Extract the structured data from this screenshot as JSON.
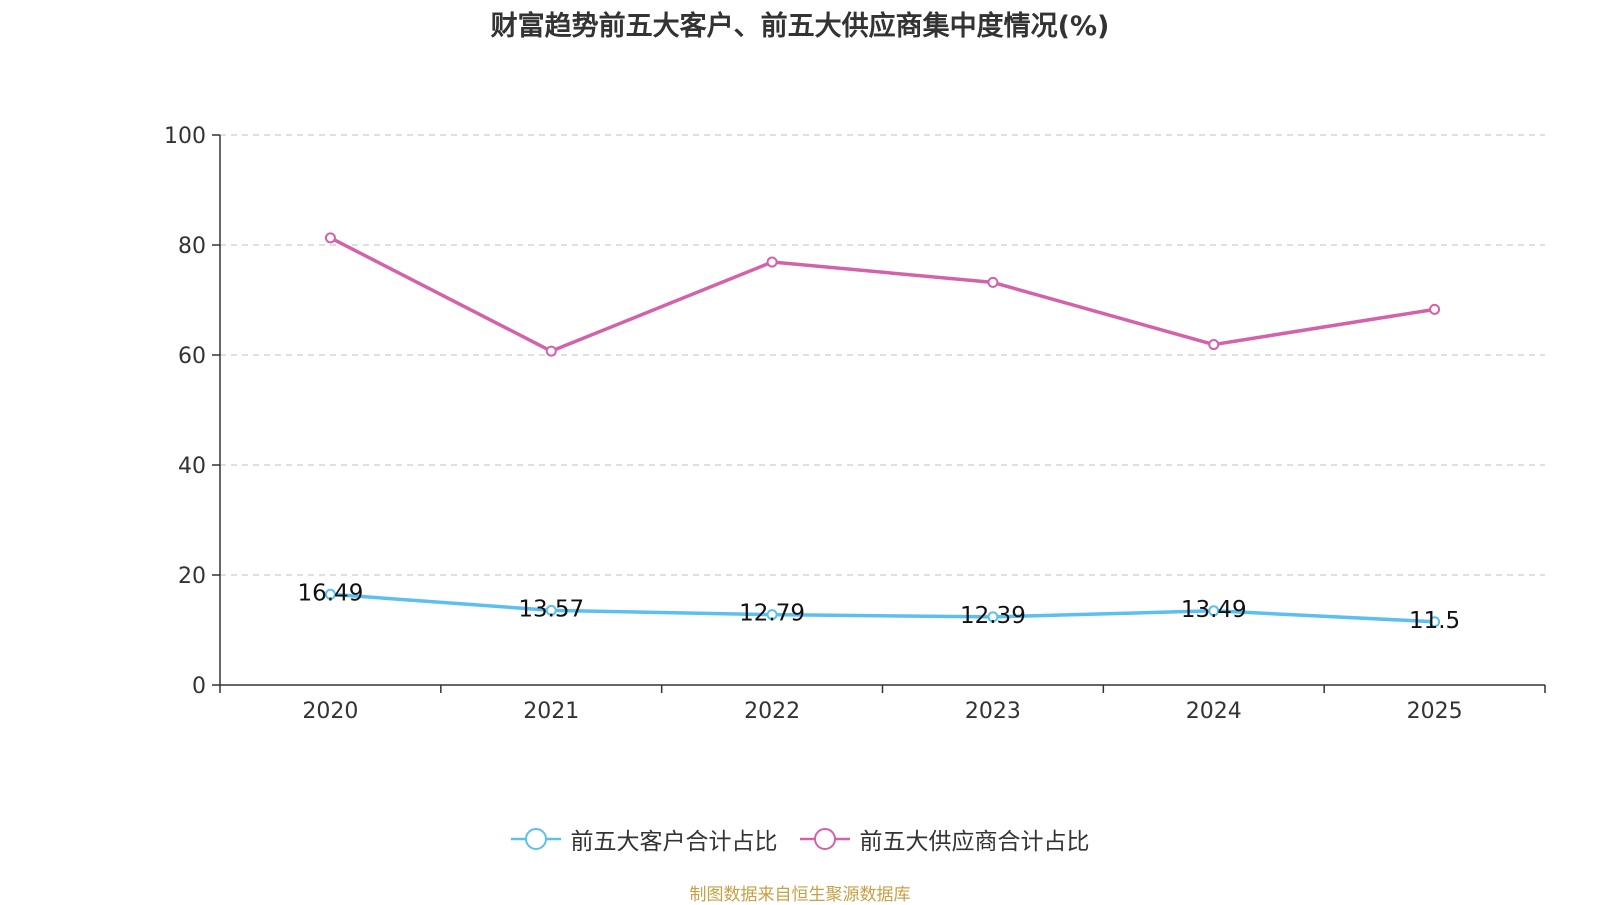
{
  "chart_data": {
    "type": "line",
    "title": "财富趋势前五大客户、前五大供应商集中度情况(%)",
    "categories": [
      "2020",
      "2021",
      "2022",
      "2023",
      "2024",
      "2025"
    ],
    "ylim": [
      0,
      100
    ],
    "yticks": [
      0,
      20,
      40,
      60,
      80,
      100
    ],
    "grid": true,
    "legend_position": "bottom",
    "series": [
      {
        "name": "前五大客户合计占比",
        "color": "#5bc0f0",
        "values": [
          16.49,
          13.57,
          12.79,
          12.39,
          13.49,
          11.5
        ],
        "labels": [
          "16.49",
          "13.57",
          "12.79",
          "12.39",
          "13.49",
          "11.5"
        ],
        "show_labels": true
      },
      {
        "name": "前五大供应商合计占比",
        "color": "#d462aa",
        "values": [
          81.3,
          60.7,
          76.9,
          73.2,
          61.9,
          68.3
        ],
        "show_labels": false
      }
    ]
  },
  "source": "制图数据来自恒生聚源数据库"
}
